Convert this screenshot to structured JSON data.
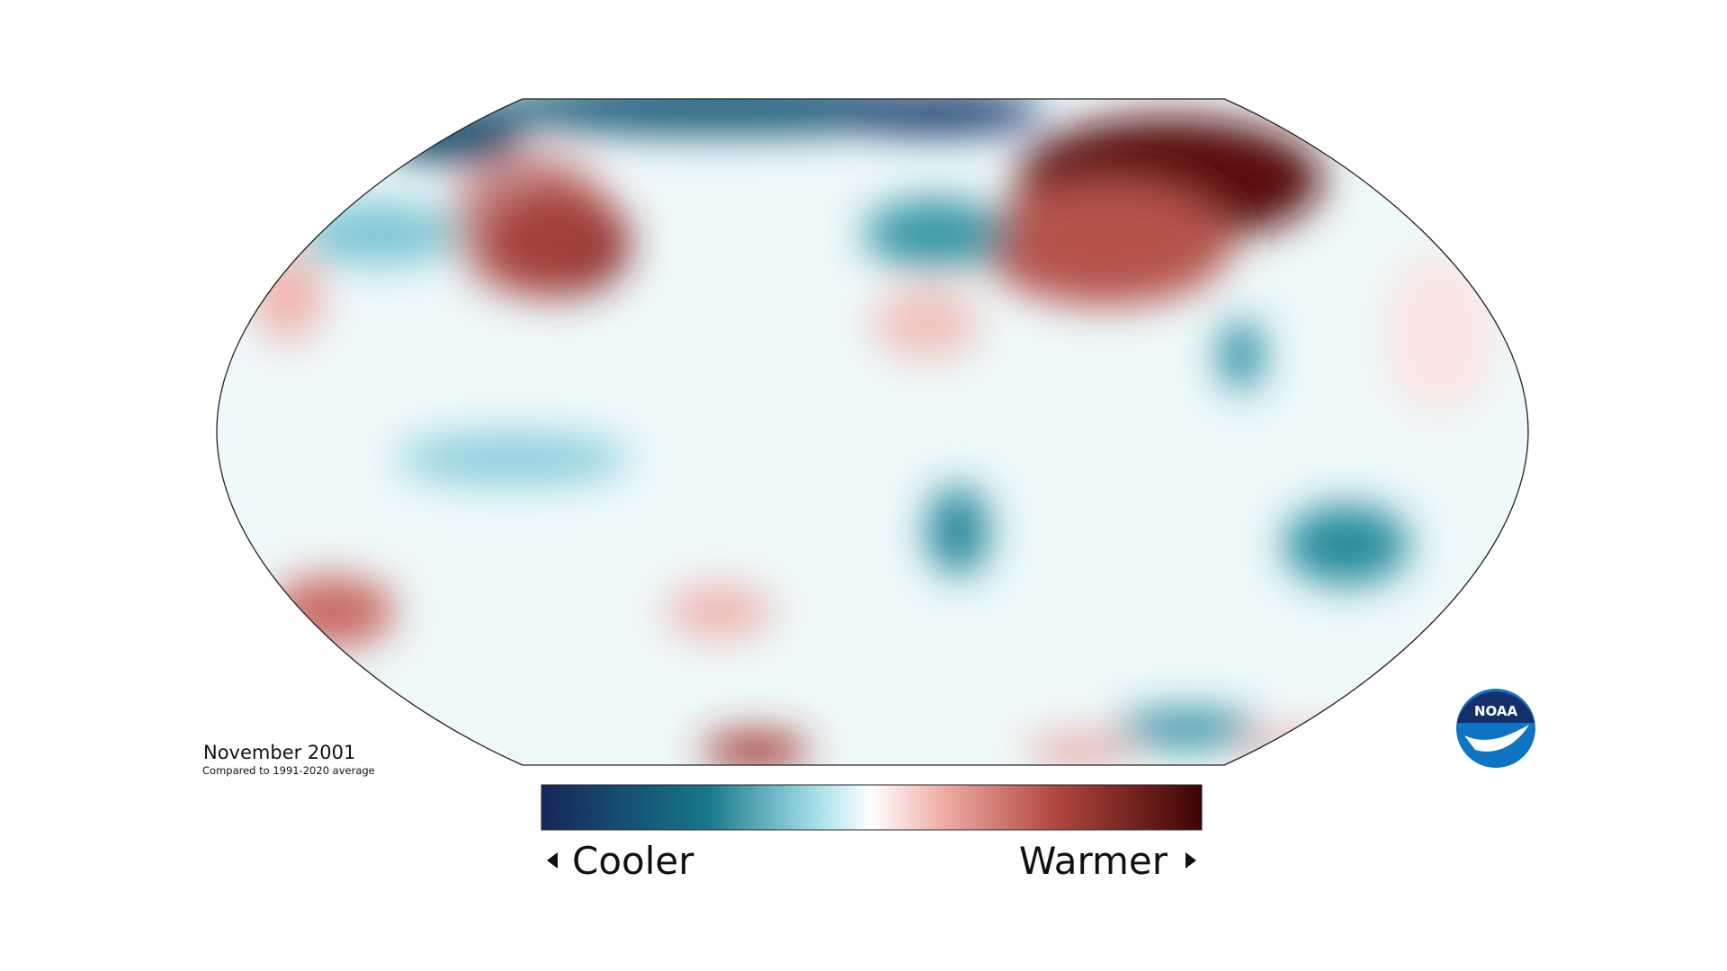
{
  "title": "November 2001",
  "subtitle": "Compared to 1991-2020 average",
  "legend": {
    "low": "Cooler",
    "high": "Warmer"
  },
  "logo": "NOAA"
}
